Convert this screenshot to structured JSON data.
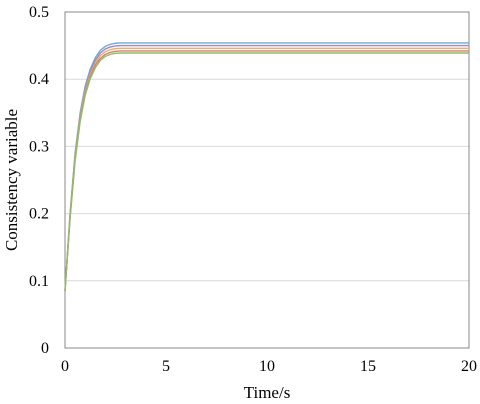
{
  "chart_data": {
    "type": "line",
    "xlabel": "Time/s",
    "ylabel": "Consistency variable",
    "xlim": [
      0,
      20
    ],
    "ylim": [
      0,
      0.5
    ],
    "xticks": [
      0,
      5,
      10,
      15,
      20
    ],
    "yticks": [
      0,
      0.1,
      0.2,
      0.3,
      0.4,
      0.5
    ],
    "xtick_labels": [
      "0",
      "5",
      "10",
      "15",
      "20"
    ],
    "ytick_labels": [
      "0",
      "0.1",
      "0.2",
      "0.3",
      "0.4",
      "0.5"
    ],
    "grid": "horizontal",
    "legend": "none",
    "series": [
      {
        "color": "#6fa8dc",
        "x": [
          0,
          0.25,
          0.5,
          0.75,
          1,
          1.25,
          1.5,
          1.75,
          2,
          2.25,
          2.5,
          2.75,
          3,
          5,
          10,
          15,
          20
        ],
        "values": [
          0.085,
          0.2,
          0.29,
          0.35,
          0.39,
          0.415,
          0.432,
          0.443,
          0.449,
          0.452,
          0.4535,
          0.454,
          0.454,
          0.454,
          0.454,
          0.454,
          0.454
        ]
      },
      {
        "color": "#9a8ac0",
        "x": [
          0,
          0.25,
          0.5,
          0.75,
          1,
          1.25,
          1.5,
          1.75,
          2,
          2.25,
          2.5,
          2.75,
          3,
          5,
          10,
          15,
          20
        ],
        "values": [
          0.085,
          0.198,
          0.287,
          0.346,
          0.386,
          0.411,
          0.428,
          0.439,
          0.445,
          0.448,
          0.4495,
          0.45,
          0.45,
          0.45,
          0.45,
          0.45,
          0.45
        ]
      },
      {
        "color": "#e8b06a",
        "x": [
          0,
          0.25,
          0.5,
          0.75,
          1,
          1.25,
          1.5,
          1.75,
          2,
          2.25,
          2.5,
          2.75,
          3,
          5,
          10,
          15,
          20
        ],
        "values": [
          0.085,
          0.196,
          0.284,
          0.343,
          0.382,
          0.407,
          0.424,
          0.435,
          0.441,
          0.444,
          0.4455,
          0.446,
          0.446,
          0.446,
          0.446,
          0.446,
          0.446
        ]
      },
      {
        "color": "#e07b6a",
        "x": [
          0,
          0.25,
          0.5,
          0.75,
          1,
          1.25,
          1.5,
          1.75,
          2,
          2.25,
          2.5,
          2.75,
          3,
          5,
          10,
          15,
          20
        ],
        "values": [
          0.085,
          0.194,
          0.281,
          0.34,
          0.379,
          0.404,
          0.421,
          0.431,
          0.437,
          0.44,
          0.4415,
          0.442,
          0.442,
          0.442,
          0.442,
          0.442,
          0.442
        ]
      },
      {
        "color": "#8bbf6a",
        "x": [
          0,
          0.25,
          0.5,
          0.75,
          1,
          1.25,
          1.5,
          1.75,
          2,
          2.25,
          2.5,
          2.75,
          3,
          5,
          10,
          15,
          20
        ],
        "values": [
          0.085,
          0.192,
          0.278,
          0.337,
          0.376,
          0.401,
          0.417,
          0.428,
          0.434,
          0.437,
          0.4385,
          0.439,
          0.439,
          0.439,
          0.439,
          0.439,
          0.439
        ]
      }
    ]
  }
}
